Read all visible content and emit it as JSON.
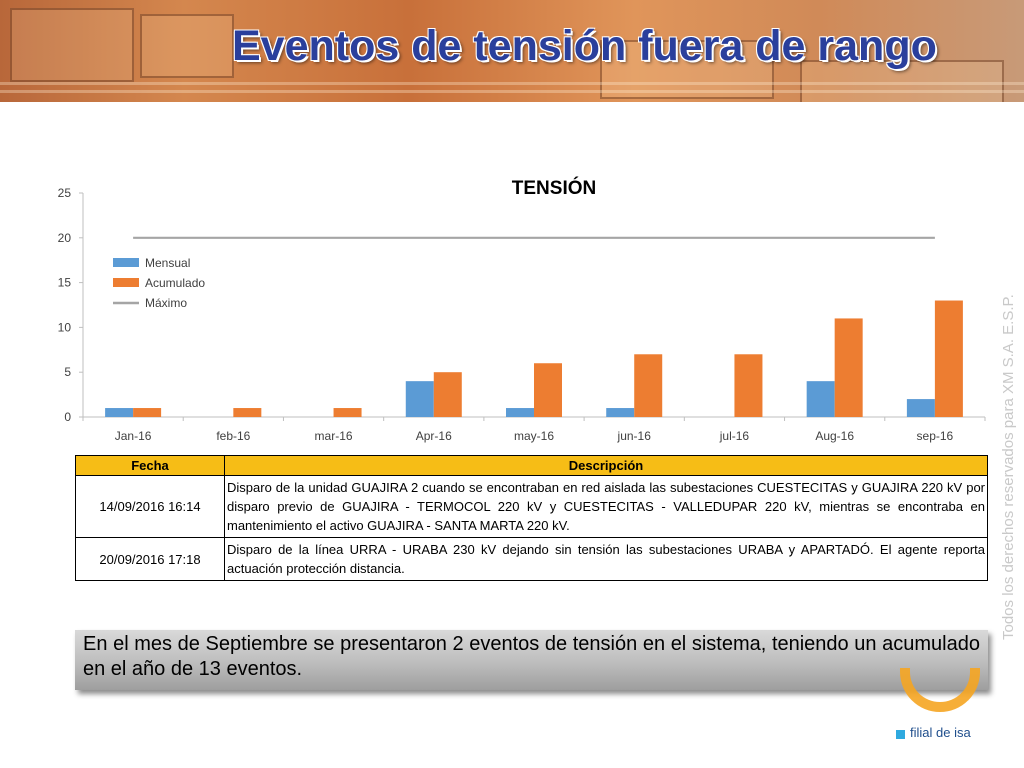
{
  "header": {
    "title": "Eventos de tensión fuera de rango"
  },
  "chart_data": {
    "type": "bar",
    "title": "TENSIÓN",
    "categories": [
      "Jan-16",
      "feb-16",
      "mar-16",
      "Apr-16",
      "may-16",
      "jun-16",
      "jul-16",
      "Aug-16",
      "sep-16"
    ],
    "series": [
      {
        "name": "Mensual",
        "type": "bar",
        "color": "#5b9bd5",
        "values": [
          1,
          0,
          0,
          4,
          1,
          1,
          0,
          4,
          2
        ]
      },
      {
        "name": "Acumulado",
        "type": "bar",
        "color": "#ed7d31",
        "values": [
          1,
          1,
          1,
          5,
          6,
          7,
          7,
          11,
          13
        ]
      },
      {
        "name": "Máximo",
        "type": "line",
        "color": "#a5a5a5",
        "values": [
          20,
          20,
          20,
          20,
          20,
          20,
          20,
          20,
          20
        ]
      }
    ],
    "ylim": [
      0,
      25
    ],
    "yticks": [
      0,
      5,
      10,
      15,
      20,
      25
    ],
    "grid": false,
    "legend": "upper-left"
  },
  "table": {
    "headers": {
      "date": "Fecha",
      "description": "Descripción"
    },
    "rows": [
      {
        "date": "14/09/2016 16:14",
        "description": "Disparo de la unidad GUAJIRA 2 cuando se encontraban en red aislada las subestaciones CUESTECITAS y GUAJIRA 220 kV por disparo previo de GUAJIRA - TERMOCOL 220 kV y CUESTECITAS - VALLEDUPAR 220 kV, mientras se encontraba en mantenimiento el activo GUAJIRA - SANTA MARTA 220 kV."
      },
      {
        "date": "20/09/2016 17:18",
        "description": "Disparo de la línea URRA - URABA 230 kV dejando sin tensión las subestaciones URABA y APARTADÓ. El agente reporta actuación protección distancia."
      }
    ]
  },
  "summary": "En el mes de Septiembre se presentaron 2 eventos de tensión en el sistema, teniendo un acumulado en el año de 13 eventos.",
  "watermark": "Todos los derechos reservados para XM S.A. E.S.P.",
  "logo": {
    "tagline": "filial de isa",
    "accent": "#f6a623"
  }
}
